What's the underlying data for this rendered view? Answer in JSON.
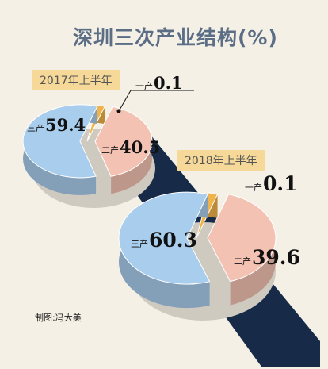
{
  "title": "深圳三次产业结构(%)",
  "credit": "制图:冯大美",
  "chart_data": [
    {
      "type": "pie",
      "title": "2017年上半年",
      "slices": [
        {
          "label": "一产",
          "value": 0.1,
          "value_text": "0.1",
          "color": "#f0b24a"
        },
        {
          "label": "二产",
          "value": 40.5,
          "value_text": "40.5",
          "color": "#f4c2b2"
        },
        {
          "label": "三产",
          "value": 59.4,
          "value_text": "59.4",
          "color": "#a9cdec"
        }
      ]
    },
    {
      "type": "pie",
      "title": "2018年上半年",
      "slices": [
        {
          "label": "一产",
          "value": 0.1,
          "value_text": "0.1",
          "color": "#f0b24a"
        },
        {
          "label": "二产",
          "value": 39.6,
          "value_text": "39.6",
          "color": "#f4c2b2"
        },
        {
          "label": "三产",
          "value": 60.3,
          "value_text": "60.3",
          "color": "#a9cdec"
        }
      ]
    }
  ]
}
